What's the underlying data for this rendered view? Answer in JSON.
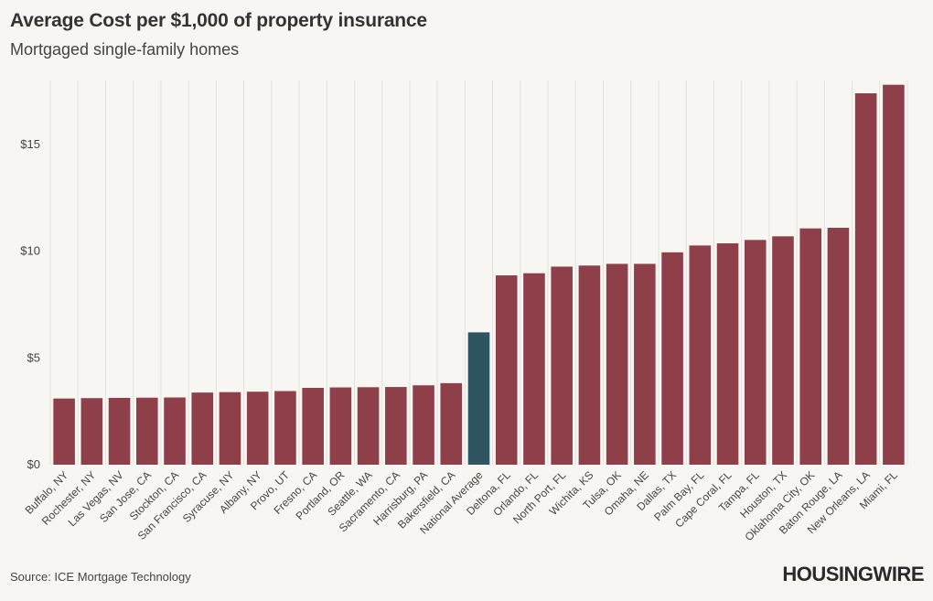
{
  "chart_data": {
    "type": "bar",
    "title": "Average Cost per $1,000 of property insurance",
    "subtitle": "Mortgaged single-family homes",
    "xlabel": "",
    "ylabel": "",
    "ylim": [
      0,
      18
    ],
    "yticks": [
      0,
      5,
      10,
      15
    ],
    "ytick_labels": [
      "$0",
      "$5",
      "$10",
      "$15"
    ],
    "grid": "vertical",
    "categories": [
      "Buffalo, NY",
      "Rochester, NY",
      "Las Vegas, NV",
      "San Jose, CA",
      "Stockton, CA",
      "San Francisco, CA",
      "Syracuse, NY",
      "Albany, NY",
      "Provo, UT",
      "Fresno, CA",
      "Portland, OR",
      "Seattle, WA",
      "Sacramento, CA",
      "Harrisburg, PA",
      "Bakersfield, CA",
      "National Average",
      "Deltona, FL",
      "Orlando, FL",
      "North Port, FL",
      "Wichita, KS",
      "Tulsa, OK",
      "Omaha, NE",
      "Dallas, TX",
      "Palm Bay, FL",
      "Cape Coral, FL",
      "Tampa, FL",
      "Houston, TX",
      "Oklahoma City, OK",
      "Baton Rouge, LA",
      "New Orleans, LA",
      "Miami, FL"
    ],
    "values": [
      3.1,
      3.12,
      3.13,
      3.14,
      3.15,
      3.38,
      3.4,
      3.42,
      3.45,
      3.6,
      3.62,
      3.63,
      3.64,
      3.72,
      3.82,
      6.2,
      8.87,
      8.97,
      9.28,
      9.33,
      9.41,
      9.41,
      9.95,
      10.27,
      10.37,
      10.53,
      10.7,
      11.07,
      11.1,
      17.4,
      17.8
    ],
    "colors": {
      "default": "#8f3f4a",
      "highlight": "#2f5563"
    },
    "highlight_category": "National Average"
  },
  "footer": {
    "source": "Source: ICE Mortgage Technology",
    "brand": "HOUSINGWIRE"
  }
}
